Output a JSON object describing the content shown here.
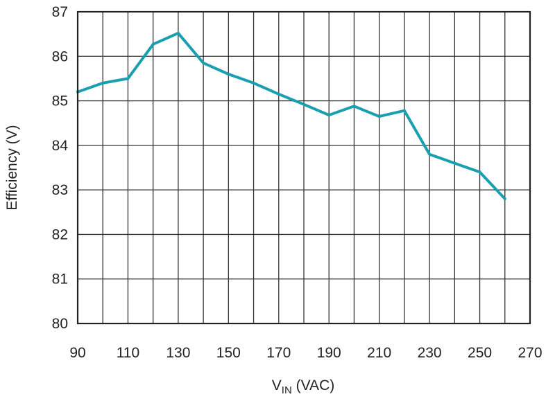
{
  "chart_data": {
    "type": "line",
    "xlabel_main": "V",
    "xlabel_sub": "IN",
    "xlabel_unit": " (VAC)",
    "ylabel": "Efficiency (V)",
    "xlim": [
      90,
      270
    ],
    "ylim": [
      80,
      87
    ],
    "x_ticks": [
      90,
      110,
      130,
      150,
      170,
      190,
      210,
      230,
      250,
      270
    ],
    "y_ticks": [
      80,
      81,
      82,
      83,
      84,
      85,
      86,
      87
    ],
    "x_grid_step": 10,
    "y_grid_step": 1,
    "grid": true,
    "series": [
      {
        "color": "#1a9fb0",
        "x": [
          90,
          100,
          110,
          120,
          130,
          140,
          150,
          160,
          170,
          180,
          190,
          200,
          210,
          220,
          230,
          240,
          250,
          260
        ],
        "y": [
          85.2,
          85.4,
          85.5,
          86.27,
          86.52,
          85.85,
          85.6,
          85.4,
          85.15,
          84.92,
          84.68,
          84.88,
          84.65,
          84.78,
          83.8,
          83.6,
          83.4,
          82.8
        ]
      }
    ]
  }
}
